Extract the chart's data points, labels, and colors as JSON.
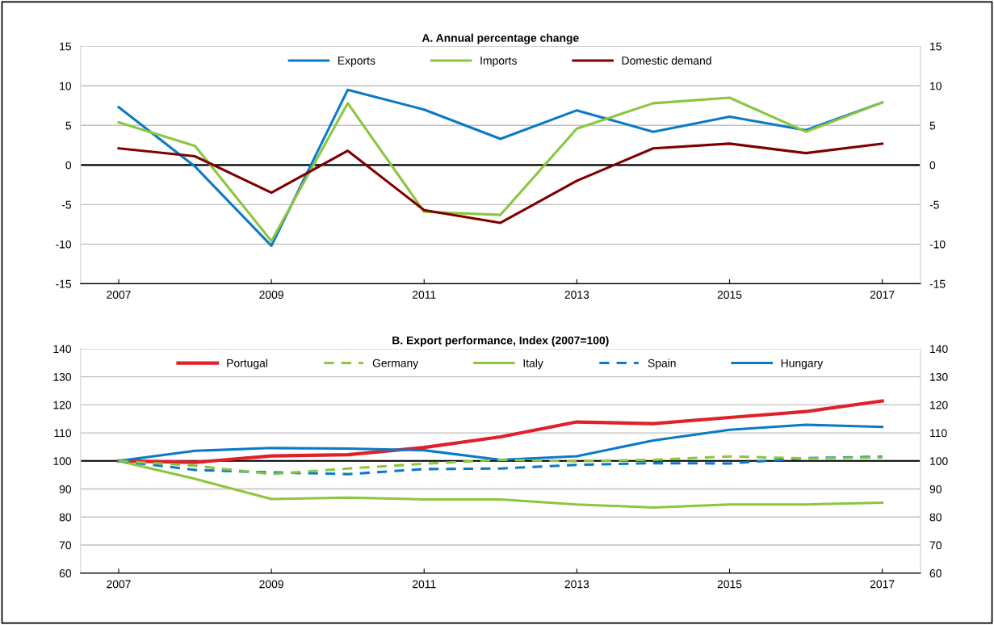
{
  "chart_data": [
    {
      "type": "line",
      "title": "A. Annual percentage change",
      "x": [
        2007,
        2008,
        2009,
        2010,
        2011,
        2012,
        2013,
        2014,
        2015,
        2016,
        2017
      ],
      "series": [
        {
          "name": "Exports",
          "color": "#0b7ac6",
          "values": [
            7.3,
            -0.2,
            -10.2,
            9.5,
            7.0,
            3.3,
            6.9,
            4.2,
            6.1,
            4.4,
            7.9
          ]
        },
        {
          "name": "Imports",
          "color": "#8cc63f",
          "values": [
            5.4,
            2.4,
            -9.6,
            7.8,
            -5.9,
            -6.3,
            4.6,
            7.8,
            8.5,
            4.2,
            7.9
          ]
        },
        {
          "name": "Domestic demand",
          "color": "#7f0000",
          "values": [
            2.1,
            1.1,
            -3.5,
            1.8,
            -5.7,
            -7.3,
            -2.0,
            2.1,
            2.7,
            1.5,
            2.7
          ]
        }
      ],
      "xlim": [
        2006.5,
        2017.5
      ],
      "xticks": [
        2007,
        2009,
        2011,
        2013,
        2015,
        2017
      ],
      "ylim": [
        -15,
        15
      ],
      "yticks": [
        -15,
        -10,
        -5,
        0,
        5,
        10,
        15
      ],
      "y2lim": [
        -15,
        15
      ],
      "y2ticks": [
        -15,
        -10,
        -5,
        0,
        5,
        10,
        15
      ],
      "ref_lines": [
        {
          "axis": "y",
          "value": 0,
          "color": "#000000"
        }
      ],
      "grid": "y",
      "legend": "top",
      "marker": "none",
      "line_style": "solid"
    },
    {
      "type": "line",
      "title": "B. Export performance, Index (2007=100)",
      "x": [
        2007,
        2008,
        2009,
        2010,
        2011,
        2012,
        2013,
        2014,
        2015,
        2016,
        2017
      ],
      "series": [
        {
          "name": "Portugal",
          "color": "#e0202a",
          "line_style": "solid",
          "values": [
            100,
            99.5,
            101.8,
            102.2,
            104.8,
            108.6,
            113.9,
            113.3,
            115.5,
            117.6,
            121.4
          ]
        },
        {
          "name": "Germany",
          "color": "#8cc63f",
          "line_style": "dashed",
          "values": [
            100,
            98.3,
            95.3,
            97.3,
            99.0,
            100.4,
            99.9,
            100.4,
            101.6,
            100.9,
            101.2
          ]
        },
        {
          "name": "Italy",
          "color": "#8cc63f",
          "line_style": "solid",
          "values": [
            100,
            93.6,
            86.4,
            86.9,
            86.3,
            86.3,
            84.5,
            83.4,
            84.5,
            84.5,
            85.1
          ]
        },
        {
          "name": "Spain",
          "color": "#0b7ac6",
          "line_style": "dashed",
          "values": [
            100,
            96.8,
            95.9,
            95.3,
            97.1,
            97.3,
            98.6,
            99.2,
            99.1,
            101.0,
            101.5
          ]
        },
        {
          "name": "Hungary",
          "color": "#0b7ac6",
          "line_style": "solid",
          "values": [
            100,
            103.6,
            104.6,
            104.4,
            103.8,
            100.4,
            101.7,
            107.3,
            111.1,
            112.9,
            112.1
          ]
        }
      ],
      "xlim": [
        2006.5,
        2017.5
      ],
      "xticks": [
        2007,
        2009,
        2011,
        2013,
        2015,
        2017
      ],
      "ylim": [
        60,
        140
      ],
      "yticks": [
        60,
        70,
        80,
        90,
        100,
        110,
        120,
        130,
        140
      ],
      "y2lim": [
        60,
        140
      ],
      "y2ticks": [
        60,
        70,
        80,
        90,
        100,
        110,
        120,
        130,
        140
      ],
      "ref_lines": [
        {
          "axis": "y",
          "value": 100,
          "color": "#000000"
        }
      ],
      "grid": "y",
      "legend": "top",
      "marker": "none"
    }
  ]
}
